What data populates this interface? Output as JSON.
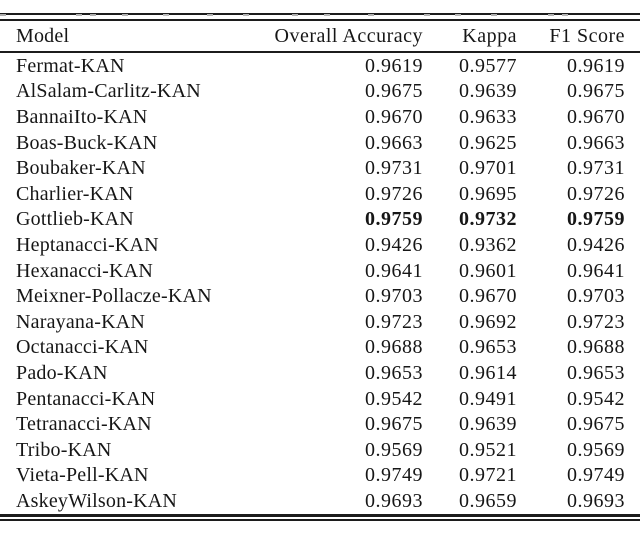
{
  "table": {
    "columns": [
      "Model",
      "Overall Accuracy",
      "Kappa",
      "F1 Score"
    ],
    "rows": [
      {
        "model": "Fermat-KAN",
        "overall_accuracy": "0.9619",
        "kappa": "0.9577",
        "f1_score": "0.9619",
        "emphasis": false
      },
      {
        "model": "AlSalam-Carlitz-KAN",
        "overall_accuracy": "0.9675",
        "kappa": "0.9639",
        "f1_score": "0.9675",
        "emphasis": false
      },
      {
        "model": "BannaiIto-KAN",
        "overall_accuracy": "0.9670",
        "kappa": "0.9633",
        "f1_score": "0.9670",
        "emphasis": false
      },
      {
        "model": "Boas-Buck-KAN",
        "overall_accuracy": "0.9663",
        "kappa": "0.9625",
        "f1_score": "0.9663",
        "emphasis": false
      },
      {
        "model": "Boubaker-KAN",
        "overall_accuracy": "0.9731",
        "kappa": "0.9701",
        "f1_score": "0.9731",
        "emphasis": false
      },
      {
        "model": "Charlier-KAN",
        "overall_accuracy": "0.9726",
        "kappa": "0.9695",
        "f1_score": "0.9726",
        "emphasis": false
      },
      {
        "model": "Gottlieb-KAN",
        "overall_accuracy": "0.9759",
        "kappa": "0.9732",
        "f1_score": "0.9759",
        "emphasis": true
      },
      {
        "model": "Heptanacci-KAN",
        "overall_accuracy": "0.9426",
        "kappa": "0.9362",
        "f1_score": "0.9426",
        "emphasis": false
      },
      {
        "model": "Hexanacci-KAN",
        "overall_accuracy": "0.9641",
        "kappa": "0.9601",
        "f1_score": "0.9641",
        "emphasis": false
      },
      {
        "model": "Meixner-Pollacze-KAN",
        "overall_accuracy": "0.9703",
        "kappa": "0.9670",
        "f1_score": "0.9703",
        "emphasis": false
      },
      {
        "model": "Narayana-KAN",
        "overall_accuracy": "0.9723",
        "kappa": "0.9692",
        "f1_score": "0.9723",
        "emphasis": false
      },
      {
        "model": "Octanacci-KAN",
        "overall_accuracy": "0.9688",
        "kappa": "0.9653",
        "f1_score": "0.9688",
        "emphasis": false
      },
      {
        "model": "Pado-KAN",
        "overall_accuracy": "0.9653",
        "kappa": "0.9614",
        "f1_score": "0.9653",
        "emphasis": false
      },
      {
        "model": "Pentanacci-KAN",
        "overall_accuracy": "0.9542",
        "kappa": "0.9491",
        "f1_score": "0.9542",
        "emphasis": false
      },
      {
        "model": "Tetranacci-KAN",
        "overall_accuracy": "0.9675",
        "kappa": "0.9639",
        "f1_score": "0.9675",
        "emphasis": false
      },
      {
        "model": "Tribo-KAN",
        "overall_accuracy": "0.9569",
        "kappa": "0.9521",
        "f1_score": "0.9569",
        "emphasis": false
      },
      {
        "model": "Vieta-Pell-KAN",
        "overall_accuracy": "0.9749",
        "kappa": "0.9721",
        "f1_score": "0.9749",
        "emphasis": false
      },
      {
        "model": "AskeyWilson-KAN",
        "overall_accuracy": "0.9693",
        "kappa": "0.9659",
        "f1_score": "0.9693",
        "emphasis": false
      }
    ]
  }
}
